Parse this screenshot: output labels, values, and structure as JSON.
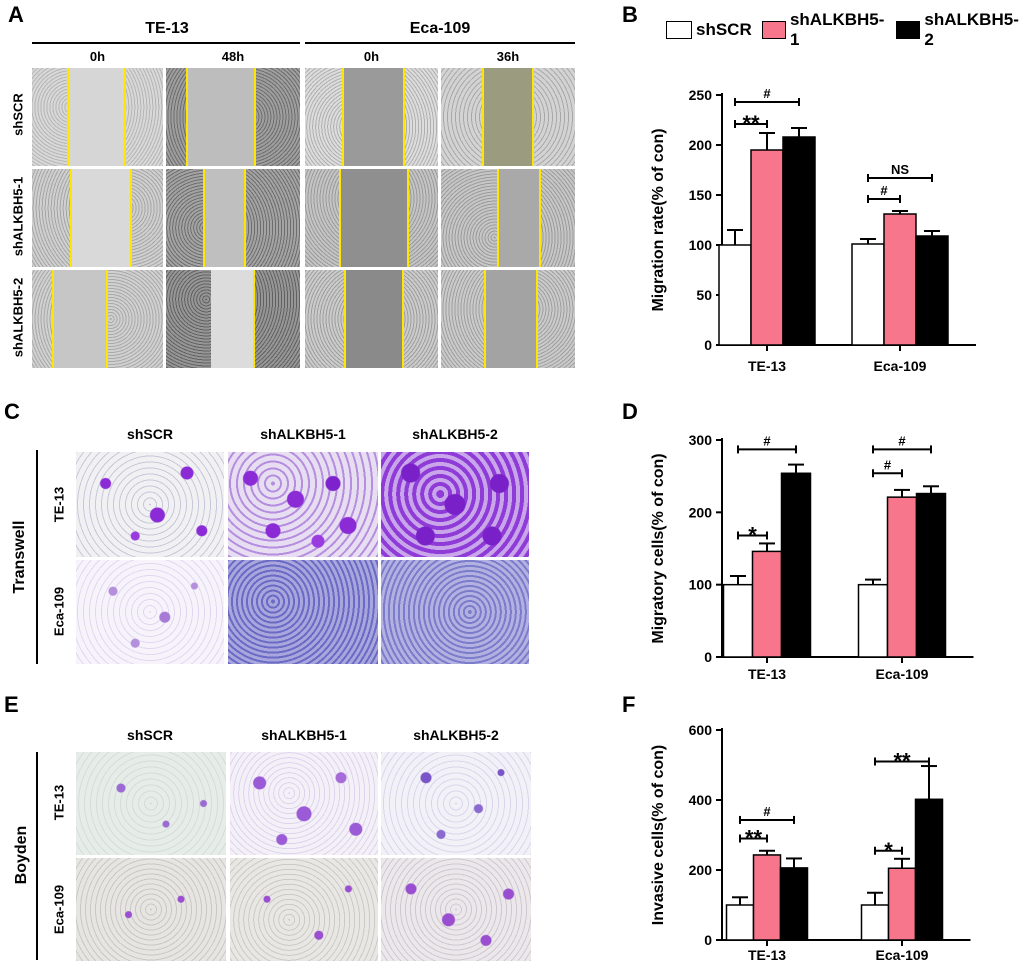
{
  "panel_labels": {
    "a": "A",
    "b": "B",
    "c": "C",
    "d": "D",
    "e": "E",
    "f": "F"
  },
  "panel_a": {
    "cell_lines": [
      "TE-13",
      "Eca-109"
    ],
    "timepoints": [
      "0h",
      "48h",
      "0h",
      "36h"
    ],
    "rows": [
      "shSCR",
      "shALKBH5-1",
      "shALKBH5-2"
    ]
  },
  "legend": {
    "items": [
      {
        "label": "shSCR",
        "color": "#ffffff"
      },
      {
        "label": "shALKBH5-1",
        "color": "#f7768b"
      },
      {
        "label": "shALKBH5-2",
        "color": "#000000"
      }
    ]
  },
  "panel_c": {
    "columns": [
      "shSCR",
      "shALKBH5-1",
      "shALKBH5-2"
    ],
    "rows": [
      "TE-13",
      "Eca-109"
    ],
    "group_label": "Transwell"
  },
  "panel_e": {
    "columns": [
      "shSCR",
      "shALKBH5-1",
      "shALKBH5-2"
    ],
    "rows": [
      "TE-13",
      "Eca-109"
    ],
    "group_label": "Boyden"
  },
  "chart_data": [
    {
      "id": "B",
      "type": "bar",
      "categories": [
        "TE-13",
        "Eca-109"
      ],
      "series": [
        {
          "name": "shSCR",
          "values": [
            100,
            101
          ],
          "errors": [
            15,
            5
          ]
        },
        {
          "name": "shALKBH5-1",
          "values": [
            195,
            131
          ],
          "errors": [
            17,
            3
          ]
        },
        {
          "name": "shALKBH5-2",
          "values": [
            208,
            109
          ],
          "errors": [
            9,
            5
          ]
        }
      ],
      "ylabel": "Migration rate(% of con)",
      "ylim": [
        0,
        250
      ],
      "yticks": [
        0,
        50,
        100,
        150,
        200,
        250
      ],
      "annotations": [
        {
          "text": "#",
          "group": 0,
          "from": 0,
          "to": 2,
          "level": 243
        },
        {
          "text": "**",
          "group": 0,
          "from": 0,
          "to": 1,
          "level": 221
        },
        {
          "text": "NS",
          "group": 1,
          "from": 0,
          "to": 2,
          "level": 167
        },
        {
          "text": "#",
          "group": 1,
          "from": 0,
          "to": 1,
          "level": 146
        }
      ]
    },
    {
      "id": "D",
      "type": "bar",
      "categories": [
        "TE-13",
        "Eca-109"
      ],
      "series": [
        {
          "name": "shSCR",
          "values": [
            100,
            100
          ],
          "errors": [
            12,
            7
          ]
        },
        {
          "name": "shALKBH5-1",
          "values": [
            146,
            221
          ],
          "errors": [
            11,
            10
          ]
        },
        {
          "name": "shALKBH5-2",
          "values": [
            254,
            226
          ],
          "errors": [
            12,
            10
          ]
        }
      ],
      "ylabel": "Migratory cells(% of con)",
      "ylim": [
        0,
        300
      ],
      "yticks": [
        0,
        100,
        200,
        300
      ],
      "annotations": [
        {
          "text": "#",
          "group": 0,
          "from": 0,
          "to": 2,
          "level": 287
        },
        {
          "text": "*",
          "group": 0,
          "from": 0,
          "to": 1,
          "level": 168
        },
        {
          "text": "#",
          "group": 1,
          "from": 0,
          "to": 2,
          "level": 287
        },
        {
          "text": "#",
          "group": 1,
          "from": 0,
          "to": 1,
          "level": 254
        }
      ]
    },
    {
      "id": "F",
      "type": "bar",
      "categories": [
        "TE-13",
        "Eca-109"
      ],
      "series": [
        {
          "name": "shSCR",
          "values": [
            100,
            100
          ],
          "errors": [
            22,
            35
          ]
        },
        {
          "name": "shALKBH5-1",
          "values": [
            243,
            205
          ],
          "errors": [
            12,
            27
          ]
        },
        {
          "name": "shALKBH5-2",
          "values": [
            206,
            402
          ],
          "errors": [
            27,
            95
          ]
        }
      ],
      "ylabel": "Invasive cells(% of con)",
      "ylim": [
        0,
        600
      ],
      "yticks": [
        0,
        200,
        400,
        600
      ],
      "annotations": [
        {
          "text": "#",
          "group": 0,
          "from": 0,
          "to": 2,
          "level": 343
        },
        {
          "text": "**",
          "group": 0,
          "from": 0,
          "to": 1,
          "level": 290
        },
        {
          "text": "**",
          "group": 1,
          "from": 0,
          "to": 2,
          "level": 510
        },
        {
          "text": "*",
          "group": 1,
          "from": 0,
          "to": 1,
          "level": 255
        }
      ]
    }
  ]
}
